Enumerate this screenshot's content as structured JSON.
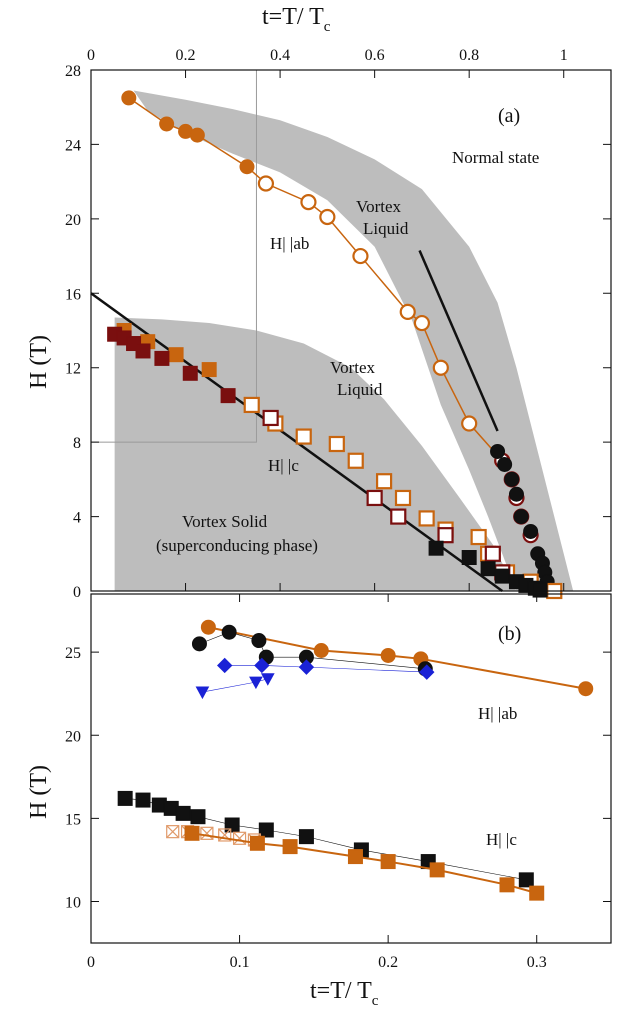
{
  "colors": {
    "orange": "#c8650f",
    "darkred": "#7a0f0f",
    "black": "#111111",
    "blue": "#1a22d6",
    "shade": "#bdbdbd",
    "cross": "#e09a6a"
  },
  "chart_data": [
    {
      "panel": "a",
      "type": "scatter",
      "title": "",
      "xlabel": "",
      "ylabel": "H (T)",
      "xlabel_top": "t=T/ T",
      "xlabel_top_sub": "c",
      "xlim": [
        0,
        1.1
      ],
      "ylim": [
        0,
        28
      ],
      "x_ticks_top": [
        0,
        0.2,
        0.4,
        0.6,
        0.8,
        1
      ],
      "x_tick_labels_top": [
        "0",
        "0.2",
        "0.4",
        "0.6",
        "0.8",
        "1"
      ],
      "y_ticks": [
        0,
        4,
        8,
        12,
        16,
        20,
        24,
        28
      ],
      "y_tick_labels": [
        "0",
        "4",
        "8",
        "12",
        "16",
        "20",
        "24",
        "28"
      ],
      "inset_box": {
        "x": [
          0,
          0.35
        ],
        "y": [
          8,
          28
        ]
      },
      "annotations": {
        "panel_label": "(a)",
        "normal_state": "Normal state",
        "vortex_liquid_ab_1": "Vortex",
        "vortex_liquid_ab_2": "Liquid",
        "h_ab": "H| |ab",
        "vortex_liquid_c_1": "Vortex",
        "vortex_liquid_c_2": "Liquid",
        "h_c": "H| |c",
        "vortex_solid_1": "Vortex Solid",
        "vortex_solid_2": "(superconducing phase)"
      },
      "shaded_regions": [
        {
          "name": "ab",
          "upper": [
            [
              0.09,
              26.9
            ],
            [
              0.2,
              26.4
            ],
            [
              0.3,
              25.9
            ],
            [
              0.4,
              25.3
            ],
            [
              0.5,
              24.4
            ],
            [
              0.6,
              23.2
            ],
            [
              0.7,
              21.6
            ],
            [
              0.8,
              18.5
            ],
            [
              0.86,
              15.5
            ],
            [
              0.9,
              12
            ],
            [
              0.94,
              8
            ],
            [
              0.97,
              5
            ],
            [
              1.0,
              2
            ],
            [
              1.02,
              0
            ]
          ],
          "lower": [
            [
              0.9,
              0
            ],
            [
              0.84,
              4
            ],
            [
              0.8,
              6.5
            ],
            [
              0.74,
              10
            ],
            [
              0.68,
              14.5
            ],
            [
              0.6,
              18.5
            ],
            [
              0.5,
              21
            ],
            [
              0.4,
              22.5
            ],
            [
              0.3,
              23.5
            ],
            [
              0.2,
              24.6
            ],
            [
              0.12,
              25.8
            ],
            [
              0.09,
              26.9
            ]
          ]
        },
        {
          "name": "c",
          "upper": [
            [
              0.05,
              14.7
            ],
            [
              0.15,
              14.6
            ],
            [
              0.25,
              14.4
            ],
            [
              0.35,
              14.0
            ],
            [
              0.45,
              13.3
            ],
            [
              0.55,
              12.0
            ],
            [
              0.62,
              10.3
            ],
            [
              0.7,
              7.8
            ],
            [
              0.78,
              5
            ],
            [
              0.85,
              2.5
            ],
            [
              0.9,
              0
            ]
          ],
          "lower": [
            [
              0.9,
              0
            ],
            [
              0.05,
              0
            ],
            [
              0.05,
              14.7
            ]
          ]
        }
      ],
      "lines": [
        {
          "name": "c-black-line",
          "color": "#111111",
          "x": [
            0.0,
            0.87
          ],
          "y": [
            16.0,
            0.0
          ],
          "width": 2.5
        },
        {
          "name": "ab-black-line",
          "color": "#111111",
          "x": [
            0.695,
            0.86
          ],
          "y": [
            18.3,
            8.6
          ],
          "width": 2.5
        }
      ],
      "series": [
        {
          "id": "ab-orange",
          "marker": "circle",
          "color": "#c8650f",
          "fill": "open",
          "connect": true,
          "x": [
            0.08,
            0.16,
            0.2,
            0.225,
            0.33,
            0.37,
            0.46,
            0.5,
            0.57,
            0.67,
            0.7,
            0.74,
            0.8,
            0.87
          ],
          "y": [
            26.5,
            25.1,
            24.7,
            24.5,
            22.8,
            21.9,
            20.9,
            20.1,
            18.0,
            15.0,
            14.4,
            12.0,
            9.0,
            7.0
          ],
          "filled": [
            true,
            true,
            true,
            true,
            true,
            false,
            false,
            false,
            false,
            false,
            false,
            false,
            false,
            false
          ]
        },
        {
          "id": "ab-darkred",
          "marker": "circle",
          "color": "#7a0f0f",
          "fill": "open",
          "connect": false,
          "x": [
            0.87,
            0.89,
            0.9,
            0.91,
            0.93
          ],
          "y": [
            7.0,
            6.0,
            5.0,
            4.0,
            3.0
          ],
          "filled": [
            false,
            false,
            false,
            false,
            false
          ]
        },
        {
          "id": "ab-black",
          "marker": "circle",
          "color": "#111111",
          "fill": "filled",
          "connect": false,
          "x": [
            0.86,
            0.875,
            0.89,
            0.9,
            0.91,
            0.93,
            0.945,
            0.955,
            0.96,
            0.965,
            0.97
          ],
          "y": [
            7.5,
            6.8,
            6.0,
            5.2,
            4.0,
            3.2,
            2.0,
            1.5,
            1.0,
            0.5,
            0.1
          ],
          "filled": [
            true,
            true,
            true,
            true,
            true,
            true,
            true,
            true,
            true,
            true,
            true
          ]
        },
        {
          "id": "c-orange",
          "marker": "square",
          "color": "#c8650f",
          "fill": "open",
          "connect": false,
          "x": [
            0.07,
            0.12,
            0.18,
            0.25,
            0.34,
            0.39,
            0.45,
            0.52,
            0.56,
            0.62,
            0.66,
            0.71,
            0.75,
            0.82,
            0.84,
            0.88,
            0.93,
            0.98
          ],
          "y": [
            14.0,
            13.4,
            12.7,
            11.9,
            10.0,
            9.0,
            8.3,
            7.9,
            7.0,
            5.9,
            5.0,
            3.9,
            3.3,
            2.9,
            2.0,
            1.0,
            0.5,
            0.0
          ],
          "filled": [
            true,
            true,
            true,
            true,
            false,
            false,
            false,
            false,
            false,
            false,
            false,
            false,
            false,
            false,
            false,
            false,
            false,
            false
          ]
        },
        {
          "id": "c-darkred",
          "marker": "square",
          "color": "#7a0f0f",
          "fill": "filled",
          "connect": false,
          "x": [
            0.05,
            0.07,
            0.09,
            0.11,
            0.15,
            0.21,
            0.29,
            0.38,
            0.6,
            0.65,
            0.75,
            0.85,
            0.87
          ],
          "y": [
            13.8,
            13.6,
            13.3,
            12.9,
            12.5,
            11.7,
            10.5,
            9.3,
            5.0,
            4.0,
            3.0,
            2.0,
            1.0
          ],
          "filled": [
            true,
            true,
            true,
            true,
            true,
            true,
            true,
            false,
            false,
            false,
            false,
            false,
            false
          ]
        },
        {
          "id": "c-black",
          "marker": "square",
          "color": "#111111",
          "fill": "filled",
          "connect": false,
          "x": [
            0.73,
            0.8,
            0.84,
            0.87,
            0.9,
            0.92,
            0.94,
            0.95
          ],
          "y": [
            2.3,
            1.8,
            1.2,
            0.8,
            0.5,
            0.3,
            0.15,
            0.05
          ],
          "filled": [
            true,
            true,
            true,
            true,
            true,
            true,
            true,
            true
          ]
        }
      ]
    },
    {
      "panel": "b",
      "type": "scatter",
      "title": "",
      "xlabel": "t=T/ T",
      "xlabel_sub": "c",
      "ylabel": "H (T)",
      "xlim": [
        0,
        0.35
      ],
      "ylim": [
        7.5,
        28.5
      ],
      "x_ticks": [
        0,
        0.1,
        0.2,
        0.3
      ],
      "x_tick_labels": [
        "0",
        "0.1",
        "0.2",
        "0.3"
      ],
      "y_ticks": [
        10,
        15,
        20,
        25
      ],
      "y_tick_labels": [
        "10",
        "15",
        "20",
        "25"
      ],
      "annotations": {
        "panel_label": "(b)",
        "h_ab": "H| |ab",
        "h_c": "H| |c"
      },
      "series": [
        {
          "id": "ab-orange",
          "marker": "circle",
          "color": "#c8650f",
          "fill": "filled",
          "connect": true,
          "linewidth": 2,
          "x": [
            0.079,
            0.155,
            0.2,
            0.222,
            0.333
          ],
          "y": [
            26.5,
            25.1,
            24.8,
            24.6,
            22.8
          ]
        },
        {
          "id": "ab-black",
          "marker": "circle",
          "color": "#111111",
          "fill": "filled",
          "connect": true,
          "linewidth": 0.6,
          "x": [
            0.073,
            0.093,
            0.113,
            0.118,
            0.145,
            0.225
          ],
          "y": [
            25.5,
            26.2,
            25.7,
            24.7,
            24.7,
            24.0
          ]
        },
        {
          "id": "ab-blue-diamond",
          "marker": "diamond",
          "color": "#1a22d6",
          "fill": "filled",
          "connect": true,
          "linewidth": 0.6,
          "x": [
            0.09,
            0.115,
            0.145,
            0.226
          ],
          "y": [
            24.2,
            24.2,
            24.1,
            23.8
          ]
        },
        {
          "id": "ab-blue-triangle",
          "marker": "triangle",
          "color": "#1a22d6",
          "fill": "filled",
          "connect": true,
          "linewidth": 0.6,
          "x": [
            0.075,
            0.111,
            0.119
          ],
          "y": [
            22.6,
            23.2,
            23.4
          ]
        },
        {
          "id": "c-black",
          "marker": "square",
          "color": "#111111",
          "fill": "filled",
          "connect": true,
          "linewidth": 0.6,
          "x": [
            0.023,
            0.035,
            0.046,
            0.054,
            0.062,
            0.072,
            0.095,
            0.118,
            0.145,
            0.182,
            0.227,
            0.293
          ],
          "y": [
            16.2,
            16.1,
            15.8,
            15.6,
            15.3,
            15.1,
            14.6,
            14.3,
            13.9,
            13.1,
            12.4,
            11.3
          ]
        },
        {
          "id": "c-cross",
          "marker": "cross-square",
          "color": "#e09a6a",
          "fill": "open",
          "connect": false,
          "x": [
            0.055,
            0.065,
            0.078,
            0.09,
            0.1,
            0.11
          ],
          "y": [
            14.2,
            14.2,
            14.1,
            14.0,
            13.8,
            13.7
          ]
        },
        {
          "id": "c-orange",
          "marker": "square",
          "color": "#c8650f",
          "fill": "filled",
          "connect": true,
          "linewidth": 2,
          "x": [
            0.068,
            0.112,
            0.134,
            0.178,
            0.2,
            0.233,
            0.28,
            0.3
          ],
          "y": [
            14.1,
            13.5,
            13.3,
            12.7,
            12.4,
            11.9,
            11.0,
            10.5
          ]
        }
      ]
    }
  ]
}
